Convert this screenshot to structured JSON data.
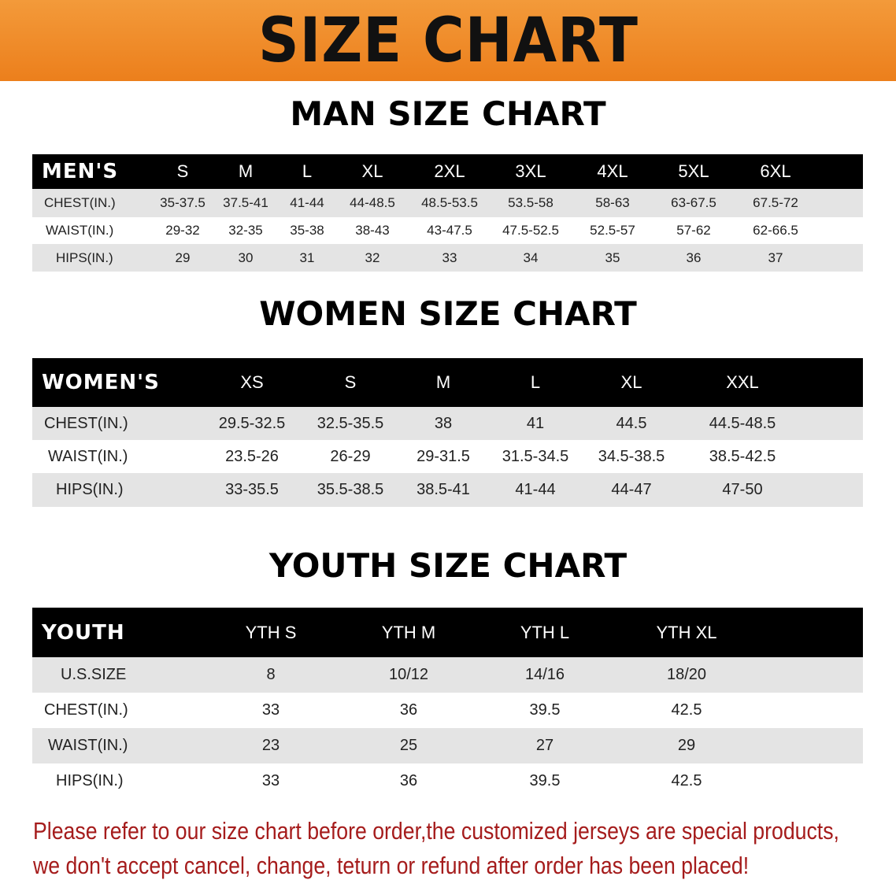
{
  "banner_title": "SIZE CHART",
  "colors": {
    "banner": "#ee8a2a",
    "header_bg": "#000000",
    "row_alt": "#e4e4e4",
    "note": "#a51c1c"
  },
  "men": {
    "title": "MAN SIZE CHART",
    "header_label": "MEN'S",
    "sizes": [
      "S",
      "M",
      "L",
      "XL",
      "2XL",
      "3XL",
      "4XL",
      "5XL",
      "6XL"
    ],
    "rows": [
      {
        "label": "CHEST(IN.)",
        "values": [
          "35-37.5",
          "37.5-41",
          "41-44",
          "44-48.5",
          "48.5-53.5",
          "53.5-58",
          "58-63",
          "63-67.5",
          "67.5-72"
        ]
      },
      {
        "label": "WAIST(IN.)",
        "values": [
          "29-32",
          "32-35",
          "35-38",
          "38-43",
          "43-47.5",
          "47.5-52.5",
          "52.5-57",
          "57-62",
          "62-66.5"
        ]
      },
      {
        "label": "HIPS(IN.)",
        "values": [
          "29",
          "30",
          "31",
          "32",
          "33",
          "34",
          "35",
          "36",
          "37"
        ]
      }
    ]
  },
  "women": {
    "title": "WOMEN SIZE CHART",
    "header_label": "WOMEN'S",
    "sizes": [
      "XS",
      "S",
      "M",
      "L",
      "XL",
      "XXL"
    ],
    "rows": [
      {
        "label": "CHEST(IN.)",
        "values": [
          "29.5-32.5",
          "32.5-35.5",
          "38",
          "41",
          "44.5",
          "44.5-48.5"
        ]
      },
      {
        "label": "WAIST(IN.)",
        "values": [
          "23.5-26",
          "26-29",
          "29-31.5",
          "31.5-34.5",
          "34.5-38.5",
          "38.5-42.5"
        ]
      },
      {
        "label": "HIPS(IN.)",
        "values": [
          "33-35.5",
          "35.5-38.5",
          "38.5-41",
          "41-44",
          "44-47",
          "47-50"
        ]
      }
    ]
  },
  "youth": {
    "title": "YOUTH SIZE CHART",
    "header_label": "YOUTH",
    "sizes": [
      "YTH S",
      "YTH M",
      "YTH L",
      "YTH XL"
    ],
    "rows": [
      {
        "label": "U.S.SIZE",
        "values": [
          "8",
          "10/12",
          "14/16",
          "18/20"
        ]
      },
      {
        "label": "CHEST(IN.)",
        "values": [
          "33",
          "36",
          "39.5",
          "42.5"
        ]
      },
      {
        "label": "WAIST(IN.)",
        "values": [
          "23",
          "25",
          "27",
          "29"
        ]
      },
      {
        "label": "HIPS(IN.)",
        "values": [
          "33",
          "36",
          "39.5",
          "42.5"
        ]
      }
    ]
  },
  "note": {
    "line1": "Please refer to our size chart before order,the customized jerseys are special products,",
    "line2": "we don't accept cancel, change, teturn or refund after order has been placed!"
  }
}
